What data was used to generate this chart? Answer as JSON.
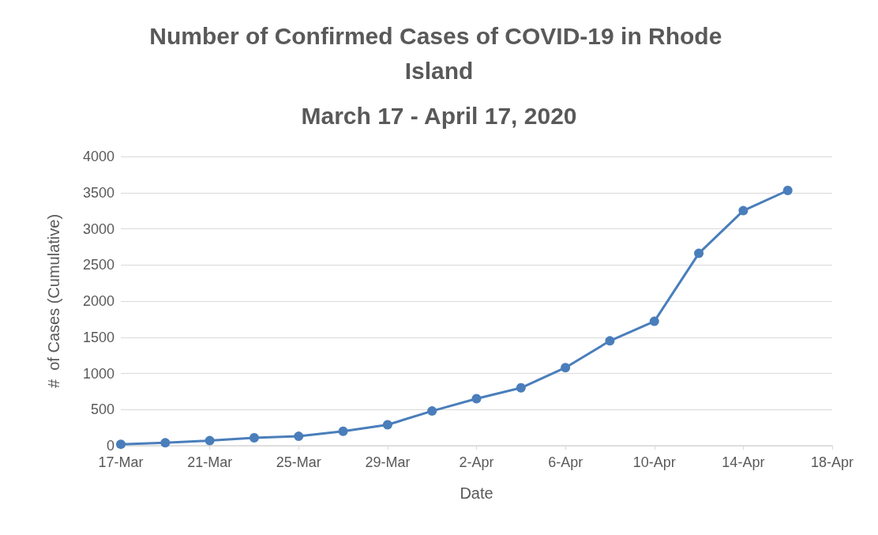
{
  "chart_data": {
    "type": "line",
    "title": "Number of Confirmed Cases of COVID-19 in Rhode Island",
    "subtitle": "March 17 - April 17, 2020",
    "xlabel": "Date",
    "ylabel": "#  of Cases (Cumulative)",
    "x": [
      "2020-03-17",
      "2020-03-19",
      "2020-03-21",
      "2020-03-23",
      "2020-03-25",
      "2020-03-27",
      "2020-03-29",
      "2020-03-31",
      "2020-04-02",
      "2020-04-04",
      "2020-04-06",
      "2020-04-08",
      "2020-04-10",
      "2020-04-12",
      "2020-04-14",
      "2020-04-16"
    ],
    "series": [
      {
        "color": "#4a7ebb",
        "values": [
          20,
          40,
          70,
          110,
          130,
          200,
          290,
          480,
          650,
          800,
          1080,
          1450,
          1720,
          2660,
          3250,
          3530
        ]
      }
    ],
    "xlim": [
      "2020-03-17",
      "2020-04-18"
    ],
    "xticks": [
      {
        "value": "2020-03-17",
        "label": "17-Mar"
      },
      {
        "value": "2020-03-21",
        "label": "21-Mar"
      },
      {
        "value": "2020-03-25",
        "label": "25-Mar"
      },
      {
        "value": "2020-03-29",
        "label": "29-Mar"
      },
      {
        "value": "2020-04-02",
        "label": "2-Apr"
      },
      {
        "value": "2020-04-06",
        "label": "6-Apr"
      },
      {
        "value": "2020-04-10",
        "label": "10-Apr"
      },
      {
        "value": "2020-04-14",
        "label": "14-Apr"
      },
      {
        "value": "2020-04-18",
        "label": "18-Apr"
      }
    ],
    "ylim": [
      0,
      4000
    ],
    "yticks": [
      0,
      500,
      1000,
      1500,
      2000,
      2500,
      3000,
      3500,
      4000
    ],
    "grid": "y",
    "marker": "circle",
    "line_style": "solid"
  }
}
